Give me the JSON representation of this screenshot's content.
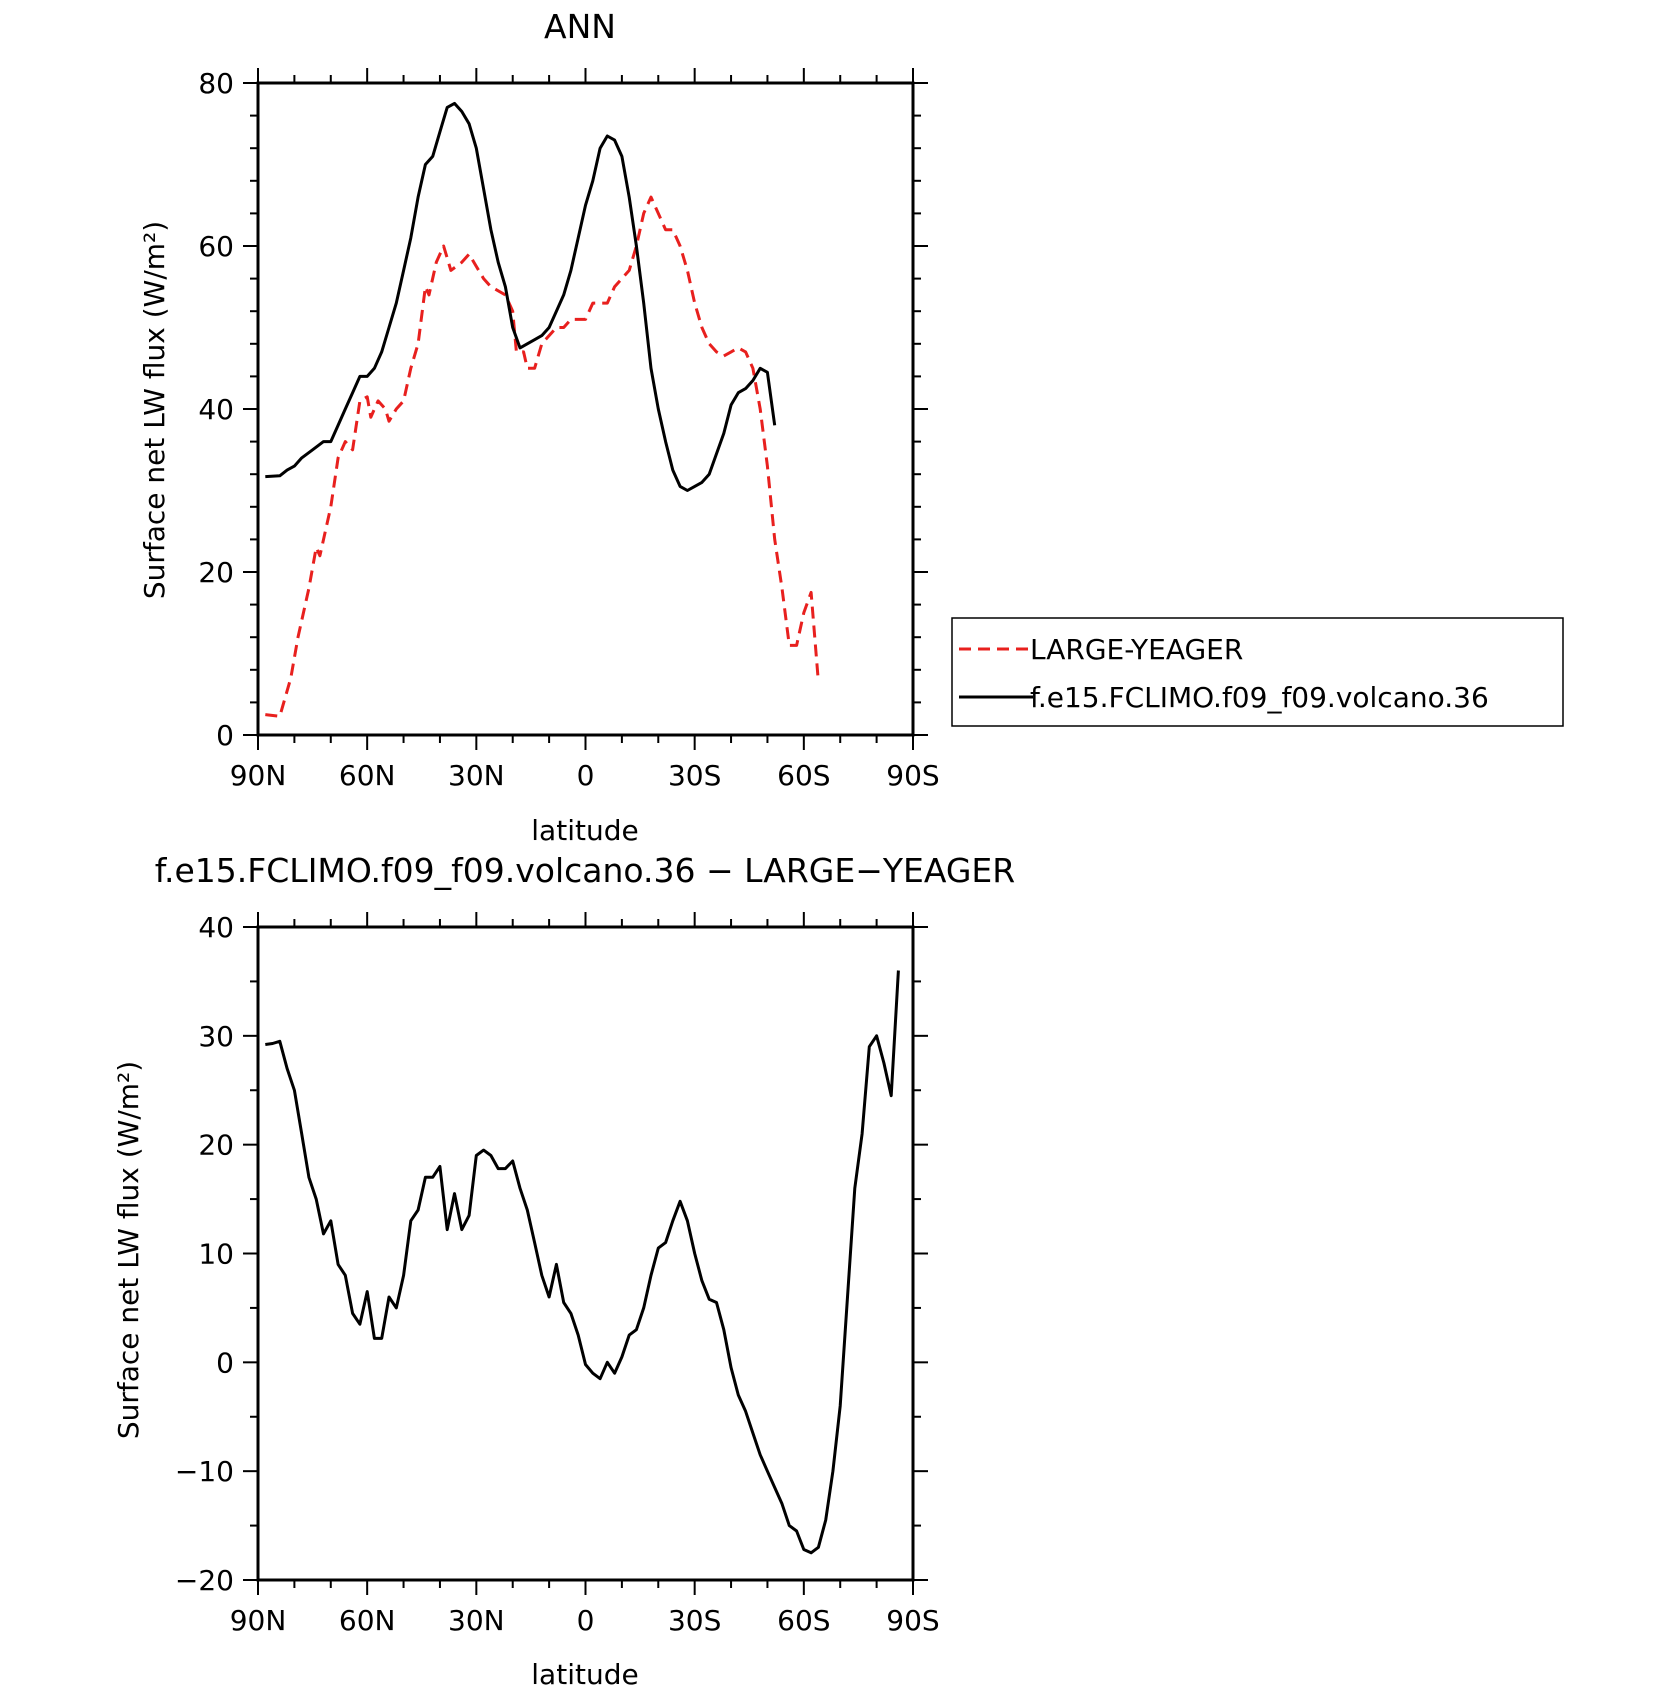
{
  "chart_data": [
    {
      "type": "line",
      "title": "ANN",
      "xlabel": "latitude",
      "ylabel": "Surface net LW flux (W/m²)",
      "xlim": [
        90,
        -90
      ],
      "ylim": [
        0,
        80
      ],
      "xticks": [
        90,
        60,
        30,
        0,
        -30,
        -60,
        -90
      ],
      "xtick_labels": [
        "90N",
        "60N",
        "30N",
        "0",
        "30S",
        "60S",
        "90S"
      ],
      "yticks": [
        0,
        20,
        40,
        60,
        80
      ],
      "ytick_labels": [
        "0",
        "20",
        "40",
        "60",
        "80"
      ],
      "legend": {
        "position": "right"
      },
      "series": [
        {
          "name": "LARGE-YEAGER",
          "color": "#e8201e",
          "dash": "dashed",
          "points": [
            [
              88,
              2.5
            ],
            [
              84,
              2.3
            ],
            [
              81,
              7
            ],
            [
              79,
              12
            ],
            [
              76,
              18
            ],
            [
              74,
              23
            ],
            [
              73,
              22
            ],
            [
              70,
              28
            ],
            [
              68,
              34
            ],
            [
              66,
              36
            ],
            [
              64,
              35
            ],
            [
              62,
              41
            ],
            [
              60,
              41.5
            ],
            [
              59,
              39
            ],
            [
              57,
              41
            ],
            [
              55,
              40
            ],
            [
              54,
              38.5
            ],
            [
              52,
              40
            ],
            [
              50,
              41
            ],
            [
              48,
              45
            ],
            [
              46,
              48
            ],
            [
              44,
              55
            ],
            [
              43,
              54
            ],
            [
              41,
              58
            ],
            [
              39,
              60
            ],
            [
              37,
              57
            ],
            [
              34,
              58
            ],
            [
              32,
              59
            ],
            [
              30,
              57.5
            ],
            [
              28,
              56
            ],
            [
              26,
              55
            ],
            [
              24,
              54.5
            ],
            [
              22,
              54
            ],
            [
              20,
              52
            ],
            [
              19,
              47
            ],
            [
              17,
              47
            ],
            [
              16,
              45
            ],
            [
              14,
              45
            ],
            [
              12,
              48
            ],
            [
              10,
              49
            ],
            [
              8,
              50
            ],
            [
              6,
              50
            ],
            [
              4,
              51
            ],
            [
              2,
              51
            ],
            [
              0,
              51
            ],
            [
              -2,
              53
            ],
            [
              -4,
              53
            ],
            [
              -6,
              53
            ],
            [
              -8,
              55
            ],
            [
              -10,
              56
            ],
            [
              -12,
              57
            ],
            [
              -14,
              60
            ],
            [
              -16,
              64
            ],
            [
              -18,
              66
            ],
            [
              -20,
              64
            ],
            [
              -22,
              62
            ],
            [
              -24,
              62
            ],
            [
              -26,
              60
            ],
            [
              -28,
              57
            ],
            [
              -30,
              53
            ],
            [
              -32,
              50
            ],
            [
              -34,
              48
            ],
            [
              -36,
              47
            ],
            [
              -38,
              46.5
            ],
            [
              -40,
              47
            ],
            [
              -42,
              47.5
            ],
            [
              -44,
              47
            ],
            [
              -46,
              45
            ],
            [
              -48,
              40
            ],
            [
              -50,
              33
            ],
            [
              -52,
              24
            ],
            [
              -54,
              18
            ],
            [
              -56,
              11
            ],
            [
              -58,
              11
            ],
            [
              -60,
              15
            ],
            [
              -62,
              17.5
            ],
            [
              -64,
              6.5
            ]
          ]
        },
        {
          "name": "f.e15.FCLIMO.f09_f09.volcano.36",
          "color": "#000000",
          "dash": "solid",
          "points": [
            [
              88,
              31.7
            ],
            [
              84,
              31.8
            ],
            [
              82,
              32.5
            ],
            [
              80,
              33
            ],
            [
              78,
              34
            ],
            [
              75,
              35
            ],
            [
              72,
              36
            ],
            [
              70,
              36
            ],
            [
              68,
              38
            ],
            [
              66,
              40
            ],
            [
              64,
              42
            ],
            [
              62,
              44
            ],
            [
              60,
              44
            ],
            [
              58,
              45
            ],
            [
              56,
              47
            ],
            [
              54,
              50
            ],
            [
              52,
              53
            ],
            [
              50,
              57
            ],
            [
              48,
              61
            ],
            [
              46,
              66
            ],
            [
              44,
              70
            ],
            [
              42,
              71
            ],
            [
              40,
              74
            ],
            [
              38,
              77
            ],
            [
              36,
              77.5
            ],
            [
              34,
              76.5
            ],
            [
              32,
              75
            ],
            [
              30,
              72
            ],
            [
              28,
              67
            ],
            [
              26,
              62
            ],
            [
              24,
              58
            ],
            [
              22,
              55
            ],
            [
              20,
              50
            ],
            [
              18,
              47.5
            ],
            [
              16,
              48
            ],
            [
              14,
              48.5
            ],
            [
              12,
              49
            ],
            [
              10,
              50
            ],
            [
              8,
              52
            ],
            [
              6,
              54
            ],
            [
              4,
              57
            ],
            [
              2,
              61
            ],
            [
              0,
              65
            ],
            [
              -2,
              68
            ],
            [
              -4,
              72
            ],
            [
              -6,
              73.5
            ],
            [
              -8,
              73
            ],
            [
              -10,
              71
            ],
            [
              -12,
              66
            ],
            [
              -14,
              60
            ],
            [
              -16,
              53
            ],
            [
              -18,
              45
            ],
            [
              -20,
              40
            ],
            [
              -22,
              36
            ],
            [
              -24,
              32.5
            ],
            [
              -26,
              30.5
            ],
            [
              -28,
              30
            ],
            [
              -30,
              30.5
            ],
            [
              -32,
              31
            ],
            [
              -34,
              32
            ],
            [
              -36,
              34.5
            ],
            [
              -38,
              37
            ],
            [
              -40,
              40.5
            ],
            [
              -42,
              42
            ],
            [
              -44,
              42.5
            ],
            [
              -46,
              43.5
            ],
            [
              -48,
              45
            ],
            [
              -50,
              44.5
            ],
            [
              -52,
              38
            ]
          ]
        }
      ]
    },
    {
      "type": "line",
      "title": "f.e15.FCLIMO.f09_f09.volcano.36 − LARGE−YEAGER",
      "xlabel": "latitude",
      "ylabel": "Surface net LW flux (W/m²)",
      "xlim": [
        90,
        -90
      ],
      "ylim": [
        -20,
        40
      ],
      "xticks": [
        90,
        60,
        30,
        0,
        -30,
        -60,
        -90
      ],
      "xtick_labels": [
        "90N",
        "60N",
        "30N",
        "0",
        "30S",
        "60S",
        "90S"
      ],
      "yticks": [
        -20,
        -10,
        0,
        10,
        20,
        30,
        40
      ],
      "ytick_labels": [
        "−20",
        "−10",
        "0",
        "10",
        "20",
        "30",
        "40"
      ],
      "series": [
        {
          "color": "#000000",
          "dash": "solid",
          "points": [
            [
              88,
              29.2
            ],
            [
              86,
              29.3
            ],
            [
              84,
              29.5
            ],
            [
              82,
              27
            ],
            [
              80,
              25
            ],
            [
              78,
              21
            ],
            [
              76,
              17
            ],
            [
              74,
              15
            ],
            [
              72,
              11.8
            ],
            [
              70,
              13
            ],
            [
              68,
              9
            ],
            [
              66,
              8
            ],
            [
              64,
              4.5
            ],
            [
              62,
              3.5
            ],
            [
              60,
              6.5
            ],
            [
              58,
              2.2
            ],
            [
              56,
              2.2
            ],
            [
              54,
              6
            ],
            [
              52,
              5
            ],
            [
              50,
              8
            ],
            [
              48,
              13
            ],
            [
              46,
              14
            ],
            [
              44,
              17
            ],
            [
              42,
              17
            ],
            [
              40,
              18
            ],
            [
              38,
              12.2
            ],
            [
              36,
              15.5
            ],
            [
              34,
              12.2
            ],
            [
              32,
              13.5
            ],
            [
              30,
              19
            ],
            [
              28,
              19.5
            ],
            [
              26,
              19
            ],
            [
              24,
              17.8
            ],
            [
              22,
              17.8
            ],
            [
              20,
              18.5
            ],
            [
              18,
              16
            ],
            [
              16,
              14
            ],
            [
              14,
              11
            ],
            [
              12,
              8
            ],
            [
              10,
              6
            ],
            [
              8,
              9
            ],
            [
              6,
              5.5
            ],
            [
              4,
              4.5
            ],
            [
              2,
              2.5
            ],
            [
              0,
              -0.2
            ],
            [
              -2,
              -1
            ],
            [
              -4,
              -1.5
            ],
            [
              -6,
              0
            ],
            [
              -8,
              -1
            ],
            [
              -10,
              0.5
            ],
            [
              -12,
              2.5
            ],
            [
              -14,
              3
            ],
            [
              -16,
              5
            ],
            [
              -18,
              8
            ],
            [
              -20,
              10.5
            ],
            [
              -22,
              11
            ],
            [
              -24,
              13
            ],
            [
              -26,
              14.8
            ],
            [
              -28,
              13
            ],
            [
              -30,
              10
            ],
            [
              -32,
              7.5
            ],
            [
              -34,
              5.8
            ],
            [
              -36,
              5.5
            ],
            [
              -38,
              3
            ],
            [
              -40,
              -0.5
            ],
            [
              -42,
              -3
            ],
            [
              -44,
              -4.5
            ],
            [
              -46,
              -6.5
            ],
            [
              -48,
              -8.5
            ],
            [
              -50,
              -10
            ],
            [
              -52,
              -11.5
            ],
            [
              -54,
              -13
            ],
            [
              -56,
              -15
            ],
            [
              -58,
              -15.5
            ],
            [
              -60,
              -17.2
            ],
            [
              -62,
              -17.5
            ],
            [
              -64,
              -17
            ],
            [
              -66,
              -14.5
            ],
            [
              -68,
              -10
            ],
            [
              -70,
              -4
            ],
            [
              -72,
              6
            ],
            [
              -74,
              16
            ],
            [
              -76,
              21
            ],
            [
              -78,
              29
            ],
            [
              -80,
              30
            ],
            [
              -82,
              27.5
            ],
            [
              -84,
              24.5
            ],
            [
              -86,
              36
            ]
          ]
        }
      ]
    }
  ]
}
